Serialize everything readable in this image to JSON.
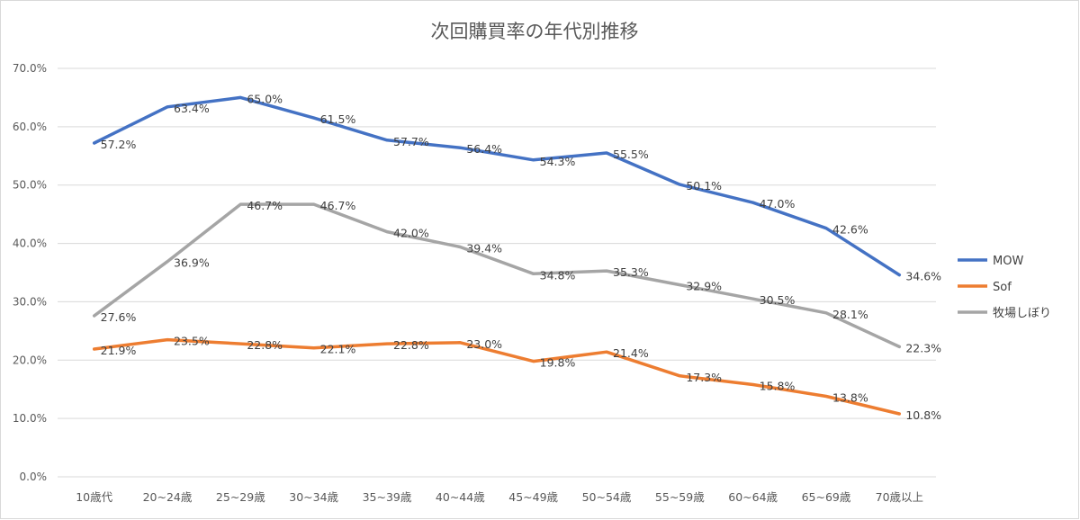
{
  "chart_data": {
    "type": "line",
    "title": "次回購買率の年代別推移",
    "xlabel": "",
    "ylabel": "",
    "categories": [
      "10歳代",
      "20~24歳",
      "25~29歳",
      "30~34歳",
      "35~39歳",
      "40~44歳",
      "45~49歳",
      "50~54歳",
      "55~59歳",
      "60~64歳",
      "65~69歳",
      "70歳以上"
    ],
    "ylim": [
      0,
      70
    ],
    "yticks": [
      0,
      10,
      20,
      30,
      40,
      50,
      60,
      70
    ],
    "ytick_labels": [
      "0.0%",
      "10.0%",
      "20.0%",
      "30.0%",
      "40.0%",
      "50.0%",
      "60.0%",
      "70.0%"
    ],
    "grid": true,
    "legend_position": "right",
    "series": [
      {
        "name": "MOW",
        "color": "#4472c4",
        "values": [
          57.2,
          63.4,
          65.0,
          61.5,
          57.7,
          56.4,
          54.3,
          55.5,
          50.1,
          47.0,
          42.6,
          34.6
        ],
        "labels": [
          "57.2%",
          "63.4%",
          "65.0%",
          "61.5%",
          "57.7%",
          "56.4%",
          "54.3%",
          "55.5%",
          "50.1%",
          "47.0%",
          "42.6%",
          "34.6%"
        ]
      },
      {
        "name": "Sof",
        "color": "#ed7d31",
        "values": [
          21.9,
          23.5,
          22.8,
          22.1,
          22.8,
          23.0,
          19.8,
          21.4,
          17.3,
          15.8,
          13.8,
          10.8
        ],
        "labels": [
          "21.9%",
          "23.5%",
          "22.8%",
          "22.1%",
          "22.8%",
          "23.0%",
          "19.8%",
          "21.4%",
          "17.3%",
          "15.8%",
          "13.8%",
          "10.8%"
        ]
      },
      {
        "name": "牧場しぼり",
        "color": "#a5a5a5",
        "values": [
          27.6,
          36.9,
          46.7,
          46.7,
          42.0,
          39.4,
          34.8,
          35.3,
          32.9,
          30.5,
          28.1,
          22.3
        ],
        "labels": [
          "27.6%",
          "36.9%",
          "46.7%",
          "46.7%",
          "42.0%",
          "39.4%",
          "34.8%",
          "35.3%",
          "32.9%",
          "30.5%",
          "28.1%",
          "22.3%"
        ]
      }
    ]
  }
}
